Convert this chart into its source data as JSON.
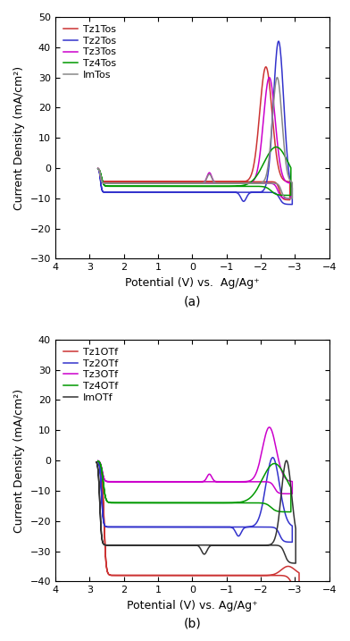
{
  "panel_a": {
    "ylabel": "Current Density (mA/cm²)",
    "xlabel": "Potential (V) vs.  Ag/Ag⁺",
    "xlim": [
      4,
      -4
    ],
    "ylim": [
      -30,
      50
    ],
    "yticks": [
      -30,
      -20,
      -10,
      0,
      10,
      20,
      30,
      40,
      50
    ],
    "xticks": [
      4,
      3,
      2,
      1,
      0,
      -1,
      -2,
      -3,
      -4
    ],
    "series": [
      {
        "label": "Tz1Tos",
        "color": "#CC3333"
      },
      {
        "label": "Tz2Tos",
        "color": "#3333CC"
      },
      {
        "label": "Tz3Tos",
        "color": "#CC00CC"
      },
      {
        "label": "Tz4Tos",
        "color": "#009900"
      },
      {
        "label": "ImTos",
        "color": "#888888"
      }
    ]
  },
  "panel_b": {
    "ylabel": "Current Density (mA/cm²)",
    "xlabel": "Potential (V) vs. Ag/Ag⁺",
    "xlim": [
      4,
      -4
    ],
    "ylim": [
      -40,
      40
    ],
    "yticks": [
      -40,
      -30,
      -20,
      -10,
      0,
      10,
      20,
      30,
      40
    ],
    "xticks": [
      4,
      3,
      2,
      1,
      0,
      -1,
      -2,
      -3,
      -4
    ],
    "series": [
      {
        "label": "Tz1OTf",
        "color": "#CC3333"
      },
      {
        "label": "Tz2OTf",
        "color": "#3333CC"
      },
      {
        "label": "Tz3OTf",
        "color": "#CC00CC"
      },
      {
        "label": "Tz4OTf",
        "color": "#009900"
      },
      {
        "label": "ImOTf",
        "color": "#333333"
      }
    ]
  }
}
